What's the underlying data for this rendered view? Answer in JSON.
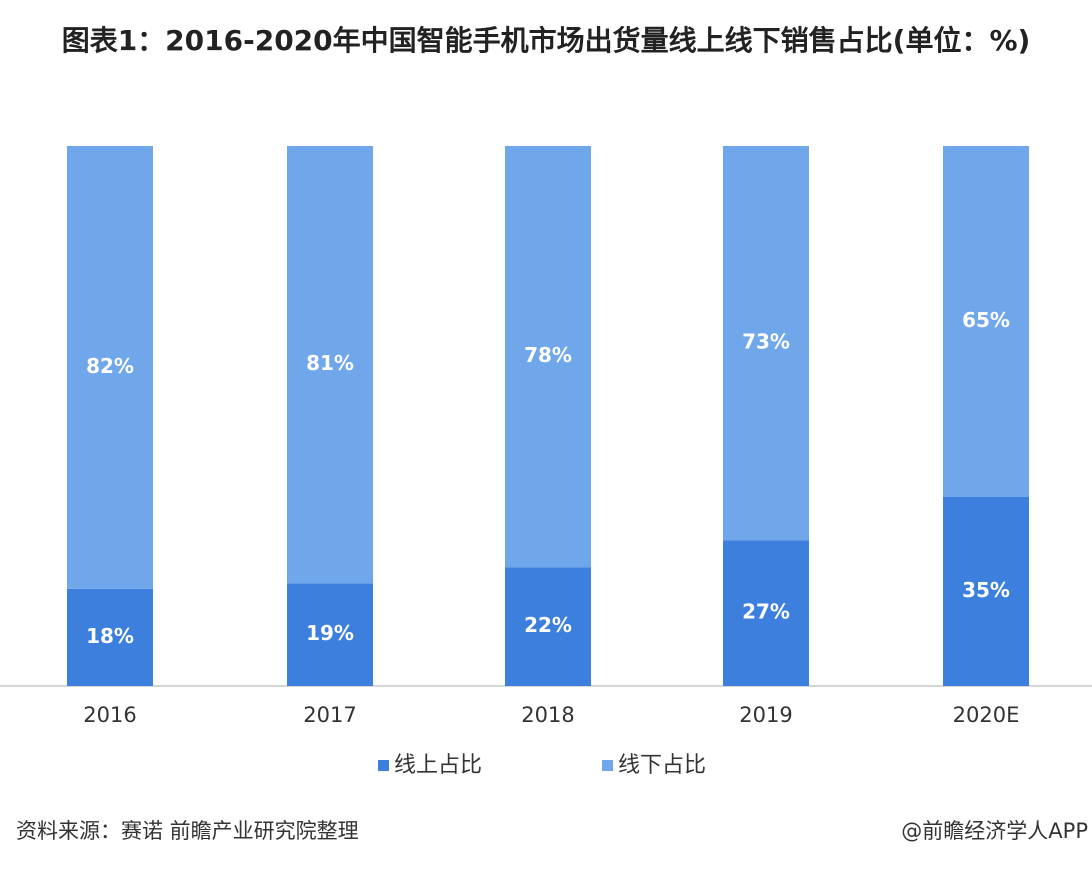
{
  "chart_data": {
    "type": "stacked_bar",
    "title": "图表1：2016-2020年中国智能手机市场出货量线上线下销售占比(单位：%)",
    "categories": [
      "2016",
      "2017",
      "2018",
      "2019",
      "2020E"
    ],
    "series": [
      {
        "name": "线上占比",
        "color": "#3d7fdc",
        "values": [
          18,
          19,
          22,
          27,
          35
        ],
        "value_labels": [
          "18%",
          "19%",
          "22%",
          "27%",
          "35%"
        ]
      },
      {
        "name": "线下占比",
        "color": "#70a6ea",
        "values": [
          82,
          81,
          78,
          73,
          65
        ],
        "value_labels": [
          "82%",
          "81%",
          "78%",
          "73%",
          "65%"
        ]
      }
    ],
    "legend": "bottom",
    "source": "资料来源：赛诺 前瞻产业研究院整理",
    "credit": "@前瞻经济学人APP"
  }
}
